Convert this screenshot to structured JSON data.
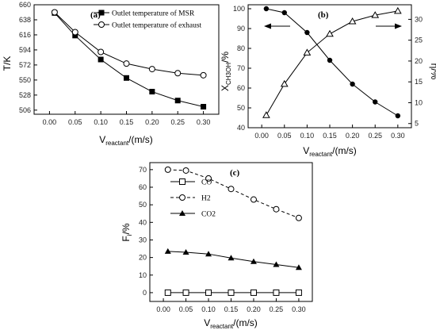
{
  "chart_data": [
    {
      "type": "line",
      "panel_label": "(a)",
      "x": [
        0.01,
        0.05,
        0.1,
        0.15,
        0.2,
        0.25,
        0.3
      ],
      "xlim": [
        -0.03,
        0.33
      ],
      "xticks": [
        "0.00",
        "0.05",
        "0.10",
        "0.15",
        "0.20",
        "0.25",
        "0.30"
      ],
      "ylim": [
        500,
        660
      ],
      "yticks": [
        "506",
        "528",
        "550",
        "572",
        "594",
        "616",
        "638",
        "660"
      ],
      "ylabel": "T/K",
      "xlabel_main": "V",
      "xlabel_sub": "reactant",
      "xlabel_unit": "/(m/s)",
      "legend": "top-right",
      "series": [
        {
          "name": "Outlet temperature of MSR",
          "marker": "filled-square",
          "values": [
            648,
            615,
            580,
            553,
            533,
            520,
            511
          ]
        },
        {
          "name": "Outlet temperature of exhaust",
          "marker": "open-circle",
          "values": [
            649,
            620,
            591,
            574,
            566,
            560,
            557
          ]
        }
      ]
    },
    {
      "type": "line",
      "panel_label": "(b)",
      "x": [
        0.01,
        0.05,
        0.1,
        0.15,
        0.2,
        0.25,
        0.3
      ],
      "xlim": [
        -0.03,
        0.33
      ],
      "xticks": [
        "0.00",
        "0.05",
        "0.10",
        "0.15",
        "0.20",
        "0.25",
        "0.30"
      ],
      "ylim": [
        40,
        102
      ],
      "yticks": [
        "40",
        "50",
        "60",
        "70",
        "80",
        "90",
        "100"
      ],
      "y2lim": [
        4,
        33.5
      ],
      "y2ticks": [
        "5",
        "10",
        "15",
        "20",
        "25",
        "30"
      ],
      "ylabel_main": "X",
      "ylabel_sub": "CH3OH",
      "ylabel_unit": "/%",
      "y2label": "η/%",
      "xlabel_main": "V",
      "xlabel_sub": "reactant",
      "xlabel_unit": "/(m/s)",
      "series": [
        {
          "marker": "filled-circle",
          "axis": "left",
          "values": [
            100,
            98,
            88,
            74,
            62,
            53,
            46
          ]
        },
        {
          "marker": "open-triangle",
          "axis": "right",
          "values": [
            7,
            14.5,
            22,
            26.5,
            29.5,
            31,
            32
          ]
        }
      ]
    },
    {
      "type": "line",
      "panel_label": "(c)",
      "x": [
        0.01,
        0.05,
        0.1,
        0.15,
        0.2,
        0.25,
        0.3
      ],
      "xlim": [
        -0.03,
        0.33
      ],
      "xticks": [
        "0.00",
        "0.05",
        "0.10",
        "0.15",
        "0.20",
        "0.25",
        "0.30"
      ],
      "ylim": [
        -5,
        74
      ],
      "yticks": [
        "0",
        "10",
        "20",
        "30",
        "40",
        "50",
        "60",
        "70"
      ],
      "ylabel_main": "F",
      "ylabel_sub": "i",
      "ylabel_unit": "/%",
      "xlabel_main": "V",
      "xlabel_sub": "reactant",
      "xlabel_unit": "/(m/s)",
      "legend": "top-left",
      "series": [
        {
          "name": "CO",
          "marker": "open-square",
          "dash": false,
          "values": [
            0,
            0,
            0,
            0,
            0,
            0,
            0
          ]
        },
        {
          "name": "H2",
          "marker": "open-circle",
          "dash": true,
          "values": [
            70,
            69.5,
            65,
            59,
            53,
            47.5,
            42.5
          ]
        },
        {
          "name": "CO2",
          "marker": "filled-triangle",
          "dash": false,
          "values": [
            23.5,
            23,
            22,
            19.7,
            17.7,
            16,
            14.3
          ]
        }
      ]
    }
  ]
}
